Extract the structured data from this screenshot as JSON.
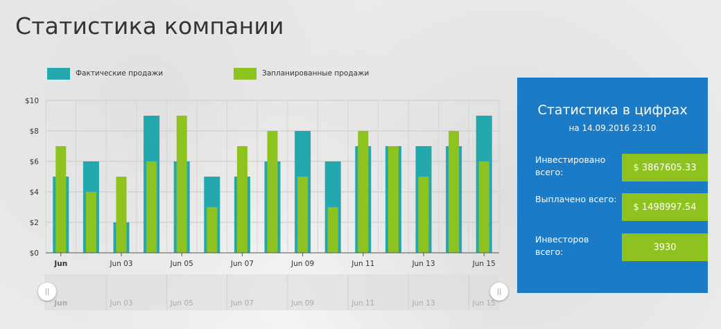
{
  "page": {
    "title": "Статистика компании"
  },
  "legend": [
    {
      "label": "Фактические продажи",
      "color": "#22a8ad"
    },
    {
      "label": "Запланированные продажи",
      "color": "#8dc21f"
    }
  ],
  "chart_data": {
    "type": "bar",
    "categories": [
      "Jun 01",
      "Jun 02",
      "Jun 03",
      "Jun 04",
      "Jun 05",
      "Jun 06",
      "Jun 07",
      "Jun 08",
      "Jun 09",
      "Jun 10",
      "Jun 11",
      "Jun 12",
      "Jun 13",
      "Jun 14",
      "Jun 15"
    ],
    "series": [
      {
        "name": "Фактические продажи",
        "color": "#22a8ad",
        "values": [
          5,
          6,
          2,
          9,
          6,
          5,
          5,
          6,
          8,
          6,
          7,
          7,
          7,
          7,
          9
        ]
      },
      {
        "name": "Запланированные продажи",
        "color": "#8dc21f",
        "values": [
          7,
          4,
          5,
          6,
          9,
          3,
          7,
          8,
          5,
          3,
          8,
          7,
          5,
          8,
          6
        ]
      }
    ],
    "ylim": [
      0,
      10
    ],
    "yticks": [
      "$0",
      "$2",
      "$4",
      "$6",
      "$8",
      "$10"
    ],
    "xtick_labels": [
      "Jun",
      "Jun 03",
      "Jun 05",
      "Jun 07",
      "Jun 09",
      "Jun 11",
      "Jun 13",
      "Jun 15"
    ],
    "grid": true
  },
  "navigator": {
    "labels": [
      "Jun",
      "Jun 03",
      "Jun 05",
      "Jun 07",
      "Jun 09",
      "Jun 11",
      "Jun 13",
      "Jun 15"
    ],
    "handle_glyph": "||"
  },
  "stats": {
    "title": "Статистика в цифрах",
    "date": "на 14.09.2016 23:10",
    "items": [
      {
        "label": "Инвестировано всего:",
        "value": "$ 3867605.33"
      },
      {
        "label": "Выплачено всего:",
        "value": "$ 1498997.54"
      },
      {
        "label": "Инвесторов всего:",
        "value": "3930"
      }
    ]
  }
}
